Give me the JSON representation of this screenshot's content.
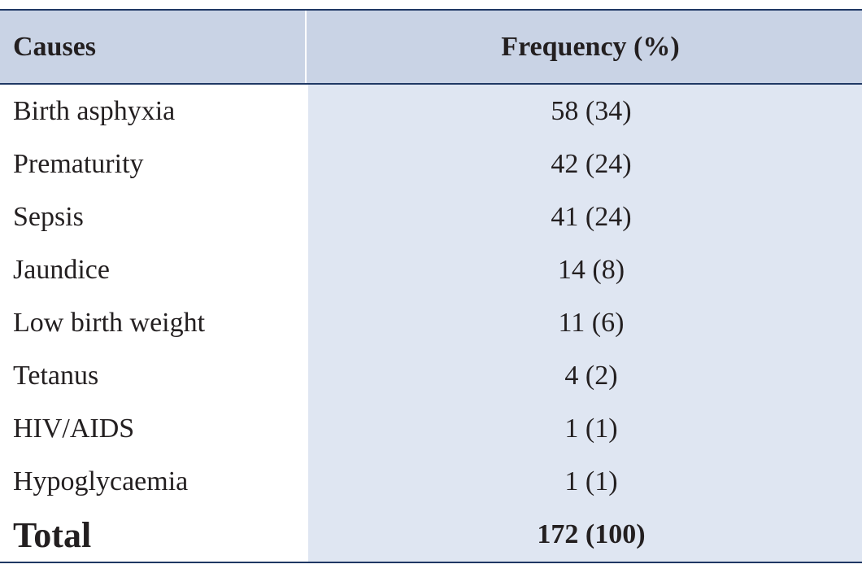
{
  "header": {
    "causes": "Causes",
    "frequency": "Frequency (%)"
  },
  "rows": [
    {
      "cause": "Birth asphyxia",
      "frequency": "58 (34)"
    },
    {
      "cause": "Prematurity",
      "frequency": "42 (24)"
    },
    {
      "cause": "Sepsis",
      "frequency": "41 (24)"
    },
    {
      "cause": "Jaundice",
      "frequency": "14 (8)"
    },
    {
      "cause": "Low birth weight",
      "frequency": "11 (6)"
    },
    {
      "cause": "Tetanus",
      "frequency": "4 (2)"
    },
    {
      "cause": "HIV/AIDS",
      "frequency": "1 (1)"
    },
    {
      "cause": "Hypoglycaemia",
      "frequency": "1 (1)"
    }
  ],
  "total": {
    "label": "Total",
    "frequency": "172 (100)"
  },
  "colors": {
    "header_bg": "#c9d3e5",
    "frequency_bg": "#dfe6f2",
    "rule": "#1f3864"
  }
}
